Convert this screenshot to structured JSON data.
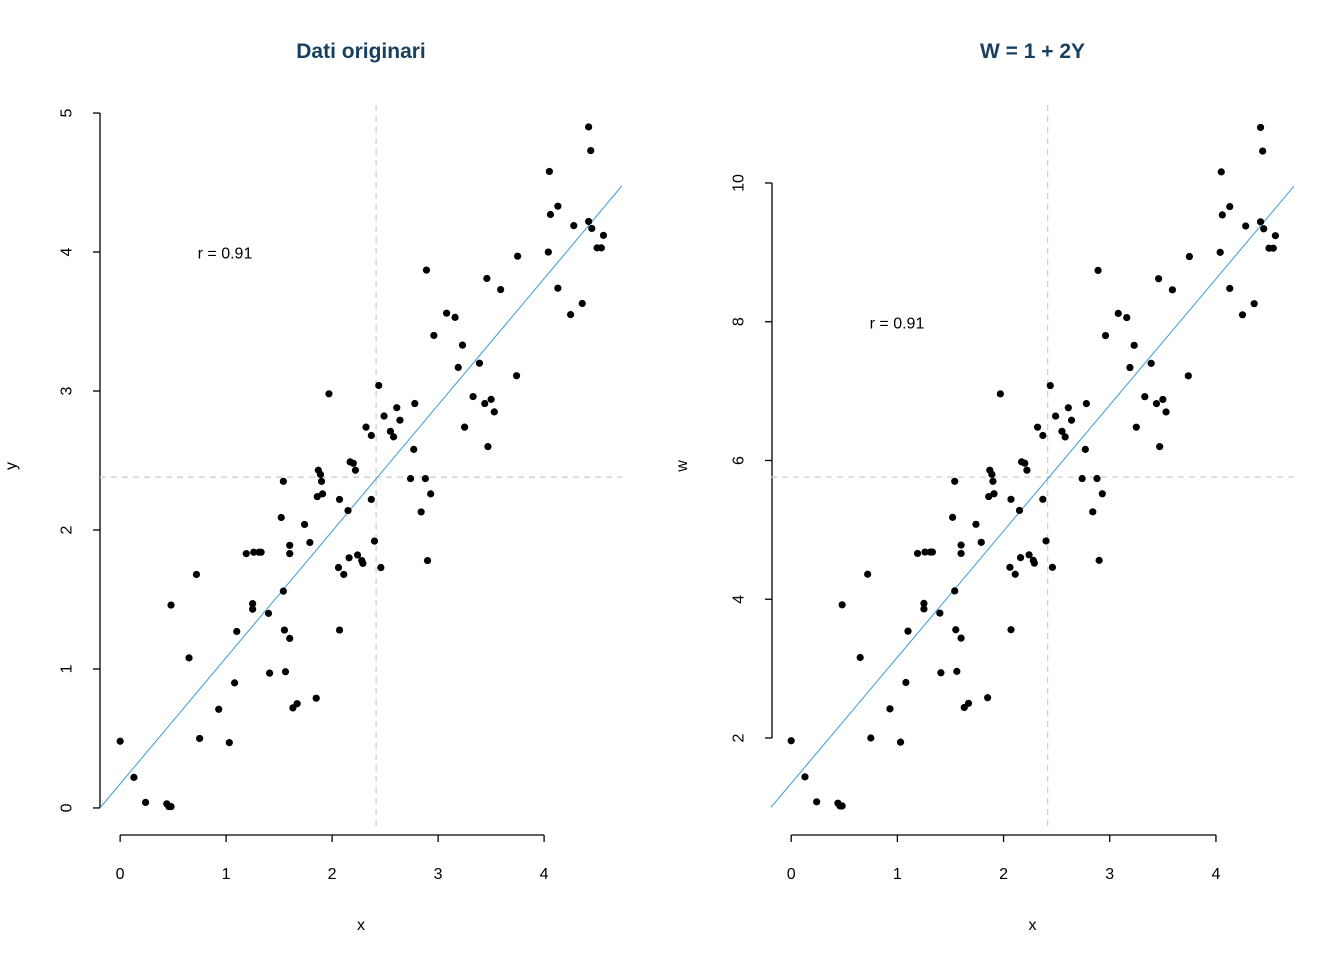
{
  "chart_data": [
    {
      "type": "scatter",
      "title": "Dati originari",
      "xlabel": "x",
      "ylabel": "y",
      "annotation": "r = 0.91",
      "xlim": [
        -0.19,
        4.735
      ],
      "ylim": [
        -0.137,
        5.058
      ],
      "xticks": [
        0,
        1,
        2,
        3,
        4
      ],
      "yticks": [
        0,
        1,
        2,
        3,
        4,
        5
      ],
      "xmean": 2.415,
      "ymean": 2.38,
      "fit": {
        "intercept": 0.173,
        "slope": 0.909,
        "color": "#3a9ad9"
      },
      "color": "#000000",
      "x": [
        0.0,
        0.13,
        0.24,
        0.44,
        0.46,
        0.48,
        0.48,
        0.65,
        0.72,
        0.75,
        0.93,
        1.03,
        1.08,
        1.1,
        1.19,
        1.25,
        1.25,
        1.26,
        1.31,
        1.33,
        1.4,
        1.41,
        1.52,
        1.54,
        1.54,
        1.55,
        1.56,
        1.6,
        1.6,
        1.6,
        1.63,
        1.67,
        1.74,
        1.79,
        1.85,
        1.86,
        1.87,
        1.89,
        1.9,
        1.91,
        1.97,
        2.06,
        2.07,
        2.07,
        2.11,
        2.15,
        2.16,
        2.17,
        2.2,
        2.22,
        2.24,
        2.28,
        2.29,
        2.32,
        2.37,
        2.37,
        2.4,
        2.44,
        2.46,
        2.49,
        2.55,
        2.58,
        2.61,
        2.64,
        2.74,
        2.77,
        2.78,
        2.84,
        2.88,
        2.89,
        2.9,
        2.93,
        2.96,
        3.08,
        3.16,
        3.19,
        3.23,
        3.25,
        3.33,
        3.39,
        3.44,
        3.46,
        3.47,
        3.5,
        3.53,
        3.59,
        3.74,
        3.75,
        4.04,
        4.05,
        4.06,
        4.13,
        4.13,
        4.25,
        4.28,
        4.36,
        4.42,
        4.42,
        4.44,
        4.45,
        4.5,
        4.54,
        4.56
      ],
      "values": [
        0.48,
        0.22,
        0.04,
        0.03,
        0.01,
        0.01,
        1.46,
        1.08,
        1.68,
        0.5,
        0.71,
        0.47,
        0.9,
        1.27,
        1.83,
        1.47,
        1.43,
        1.84,
        1.84,
        1.84,
        1.4,
        0.97,
        2.09,
        2.35,
        1.56,
        1.28,
        0.98,
        1.89,
        1.83,
        1.22,
        0.72,
        0.75,
        2.04,
        1.91,
        0.79,
        2.24,
        2.43,
        2.4,
        2.35,
        2.26,
        2.98,
        1.73,
        1.28,
        2.22,
        1.68,
        2.14,
        1.8,
        2.49,
        2.48,
        2.43,
        1.82,
        1.78,
        1.76,
        2.74,
        2.68,
        2.22,
        1.92,
        3.04,
        1.73,
        2.82,
        2.71,
        2.67,
        2.88,
        2.79,
        2.37,
        2.58,
        2.91,
        2.13,
        2.37,
        3.87,
        1.78,
        2.26,
        3.4,
        3.56,
        3.53,
        3.17,
        3.33,
        2.74,
        2.96,
        3.2,
        2.91,
        3.81,
        2.6,
        2.94,
        2.85,
        3.73,
        3.11,
        3.97,
        4.0,
        4.58,
        4.27,
        4.33,
        3.74,
        3.55,
        4.19,
        3.63,
        4.9,
        4.22,
        4.73,
        4.17,
        4.03,
        4.03,
        4.12
      ]
    },
    {
      "type": "scatter",
      "title": "W = 1 + 2Y",
      "xlabel": "x",
      "ylabel": "w",
      "annotation": "r = 0.91",
      "xlim": [
        -0.19,
        4.735
      ],
      "ylim": [
        0.717,
        11.124
      ],
      "xticks": [
        0,
        1,
        2,
        3,
        4
      ],
      "yticks": [
        2,
        4,
        6,
        8,
        10
      ],
      "xmean": 2.415,
      "ymean": 5.76,
      "fit": {
        "intercept": 1.346,
        "slope": 1.818,
        "color": "#3a9ad9"
      },
      "color": "#000000",
      "x": [
        0.0,
        0.13,
        0.24,
        0.44,
        0.46,
        0.48,
        0.48,
        0.65,
        0.72,
        0.75,
        0.93,
        1.03,
        1.08,
        1.1,
        1.19,
        1.25,
        1.25,
        1.26,
        1.31,
        1.33,
        1.4,
        1.41,
        1.52,
        1.54,
        1.54,
        1.55,
        1.56,
        1.6,
        1.6,
        1.6,
        1.63,
        1.67,
        1.74,
        1.79,
        1.85,
        1.86,
        1.87,
        1.89,
        1.9,
        1.91,
        1.97,
        2.06,
        2.07,
        2.07,
        2.11,
        2.15,
        2.16,
        2.17,
        2.2,
        2.22,
        2.24,
        2.28,
        2.29,
        2.32,
        2.37,
        2.37,
        2.4,
        2.44,
        2.46,
        2.49,
        2.55,
        2.58,
        2.61,
        2.64,
        2.74,
        2.77,
        2.78,
        2.84,
        2.88,
        2.89,
        2.9,
        2.93,
        2.96,
        3.08,
        3.16,
        3.19,
        3.23,
        3.25,
        3.33,
        3.39,
        3.44,
        3.46,
        3.47,
        3.5,
        3.53,
        3.59,
        3.74,
        3.75,
        4.04,
        4.05,
        4.06,
        4.13,
        4.13,
        4.25,
        4.28,
        4.36,
        4.42,
        4.42,
        4.44,
        4.45,
        4.5,
        4.54,
        4.56
      ],
      "values": [
        1.96,
        1.44,
        1.08,
        1.06,
        1.02,
        1.02,
        3.92,
        3.16,
        4.36,
        2.0,
        2.42,
        1.94,
        2.8,
        3.54,
        4.66,
        3.94,
        3.86,
        4.68,
        4.68,
        4.68,
        3.8,
        2.94,
        5.18,
        5.7,
        4.12,
        3.56,
        2.96,
        4.78,
        4.66,
        3.44,
        2.44,
        2.5,
        5.08,
        4.82,
        2.58,
        5.48,
        5.86,
        5.8,
        5.7,
        5.52,
        6.96,
        4.46,
        3.56,
        5.44,
        4.36,
        5.28,
        4.6,
        5.98,
        5.96,
        5.86,
        4.64,
        4.56,
        4.52,
        6.48,
        6.36,
        5.44,
        4.84,
        7.08,
        4.46,
        6.64,
        6.42,
        6.34,
        6.76,
        6.58,
        5.74,
        6.16,
        6.82,
        5.26,
        5.74,
        8.74,
        4.56,
        5.52,
        7.8,
        8.12,
        8.06,
        7.34,
        7.66,
        6.48,
        6.92,
        7.4,
        6.82,
        8.62,
        6.2,
        6.88,
        6.7,
        8.46,
        7.22,
        8.94,
        9.0,
        10.16,
        9.54,
        9.66,
        8.48,
        8.1,
        9.38,
        8.26,
        10.8,
        9.44,
        10.46,
        9.34,
        9.06,
        9.06,
        9.24
      ]
    }
  ]
}
